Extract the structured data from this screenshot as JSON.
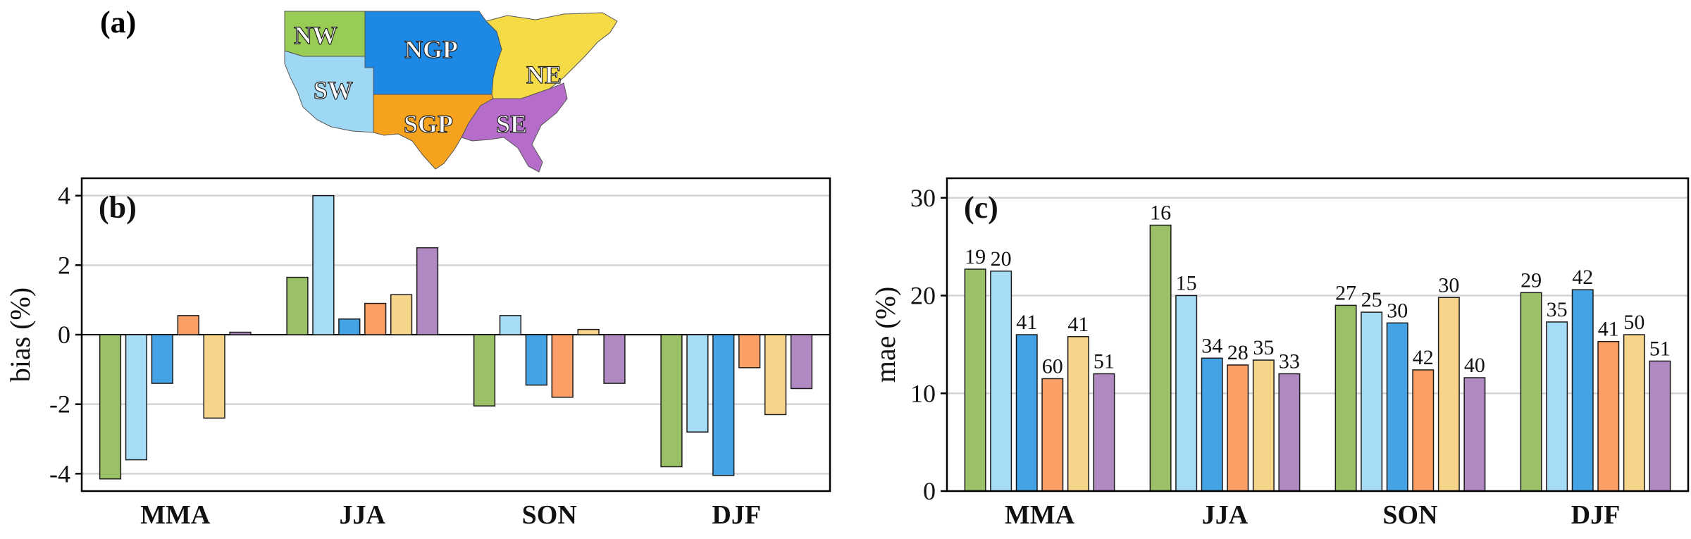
{
  "panel_a": {
    "label": "(a)",
    "regions": [
      {
        "name": "NW",
        "color": "#99CC55"
      },
      {
        "name": "NGP",
        "color": "#1E88E5"
      },
      {
        "name": "NE",
        "color": "#F5DC46"
      },
      {
        "name": "SW",
        "color": "#9ED8F5"
      },
      {
        "name": "SGP",
        "color": "#F5A21E"
      },
      {
        "name": "SE",
        "color": "#B56CCB"
      }
    ]
  },
  "series_colors": [
    "#9BC068",
    "#A6DCF6",
    "#43A3E5",
    "#FB9F67",
    "#F6D48A",
    "#B088C2"
  ],
  "chart_data": [
    {
      "type": "bar",
      "panel_label": "(b)",
      "categories": [
        "MMA",
        "JJA",
        "SON",
        "DJF"
      ],
      "ylabel": "bias  (%)",
      "ylim": [
        -4.5,
        4.5
      ],
      "yticks": [
        4,
        2,
        0,
        -2,
        -4
      ],
      "ytick_labels": [
        "4",
        "2",
        "0",
        "-2",
        "-4"
      ],
      "grid": true,
      "series": [
        {
          "values": [
            -4.15,
            1.65,
            -2.05,
            -3.8
          ]
        },
        {
          "values": [
            -3.6,
            4.0,
            0.55,
            -2.8
          ]
        },
        {
          "values": [
            -1.4,
            0.45,
            -1.45,
            -4.05
          ]
        },
        {
          "values": [
            0.55,
            0.9,
            -1.8,
            -0.95
          ]
        },
        {
          "values": [
            -2.4,
            1.15,
            0.15,
            -2.3
          ]
        },
        {
          "values": [
            0.07,
            2.5,
            -1.4,
            -1.55
          ]
        }
      ]
    },
    {
      "type": "bar",
      "panel_label": "(c)",
      "categories": [
        "MMA",
        "JJA",
        "SON",
        "DJF"
      ],
      "ylabel": "mae  (%)",
      "ylim": [
        0,
        32
      ],
      "yticks": [
        0,
        10,
        20,
        30
      ],
      "ytick_labels": [
        "0",
        "10",
        "20",
        "30"
      ],
      "grid": true,
      "series": [
        {
          "values": [
            22.7,
            27.2,
            19.0,
            20.3
          ],
          "labels": [
            "19",
            "16",
            "27",
            "29"
          ]
        },
        {
          "values": [
            22.5,
            20.0,
            18.3,
            17.3
          ],
          "labels": [
            "20",
            "15",
            "25",
            "35"
          ]
        },
        {
          "values": [
            16.0,
            13.6,
            17.2,
            20.6
          ],
          "labels": [
            "41",
            "34",
            "30",
            "42"
          ]
        },
        {
          "values": [
            11.5,
            12.9,
            12.4,
            15.3
          ],
          "labels": [
            "60",
            "28",
            "42",
            "41"
          ]
        },
        {
          "values": [
            15.8,
            13.4,
            19.8,
            16.0
          ],
          "labels": [
            "41",
            "35",
            "30",
            "50"
          ]
        },
        {
          "values": [
            12.0,
            12.0,
            11.6,
            13.3
          ],
          "labels": [
            "51",
            "33",
            "40",
            "51"
          ]
        }
      ]
    }
  ]
}
